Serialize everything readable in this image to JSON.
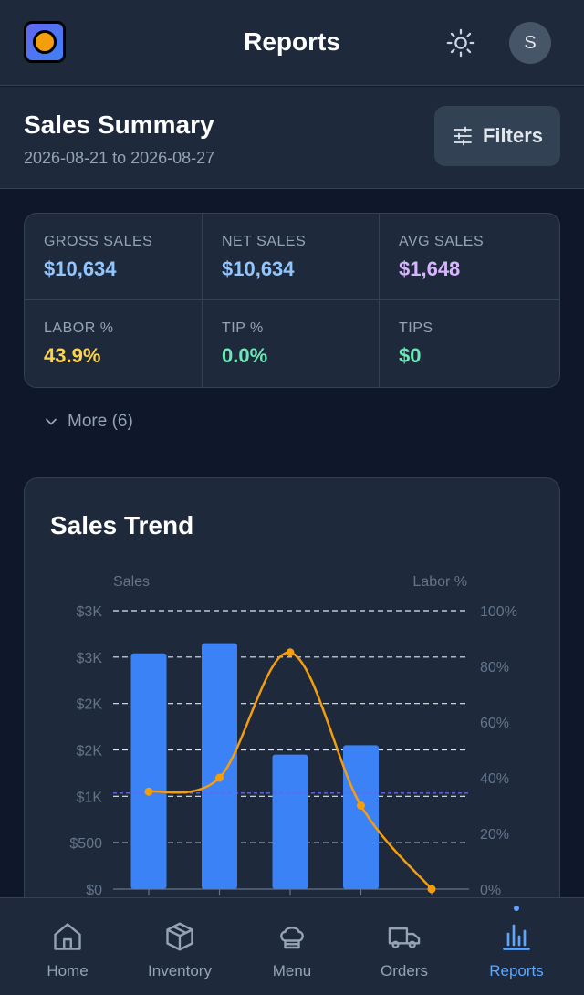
{
  "header": {
    "title": "Reports",
    "avatar_initial": "S"
  },
  "summary": {
    "title": "Sales Summary",
    "date_range": "2026-08-21 to 2026-08-27",
    "filters_label": "Filters"
  },
  "metrics": [
    {
      "label": "GROSS SALES",
      "value": "$10,634",
      "color": "#93c5fd"
    },
    {
      "label": "NET SALES",
      "value": "$10,634",
      "color": "#93c5fd"
    },
    {
      "label": "AVG SALES",
      "value": "$1,648",
      "color": "#d8b4fe"
    },
    {
      "label": "LABOR %",
      "value": "43.9%",
      "color": "#fcd34d"
    },
    {
      "label": "TIP %",
      "value": "0.0%",
      "color": "#6ee7b7"
    },
    {
      "label": "TIPS",
      "value": "$0",
      "color": "#6ee7b7"
    }
  ],
  "more_label": "More (6)",
  "chart_card": {
    "title": "Sales Trend"
  },
  "chart_data": {
    "type": "bar",
    "title": "Sales Trend",
    "ylabel": "Sales",
    "y2label": "Labor %",
    "y_ticks": [
      "$3K",
      "$3K",
      "$2K",
      "$2K",
      "$1K",
      "$500",
      "$0"
    ],
    "y2_ticks": [
      "100%",
      "80%",
      "60%",
      "40%",
      "20%",
      "0%"
    ],
    "ylim": [
      0,
      3000
    ],
    "y2lim": [
      0,
      100
    ],
    "grid": true,
    "series": [
      {
        "name": "Sales",
        "type": "bar",
        "color": "#3b82f6",
        "values": [
          2540,
          2650,
          1450,
          1550,
          0
        ]
      },
      {
        "name": "Labor %",
        "type": "line",
        "color": "#f59e0b",
        "values": [
          35,
          40,
          85,
          30,
          0
        ]
      }
    ],
    "reference_line": {
      "value": 1035,
      "color": "#6366f1"
    }
  },
  "nav": [
    {
      "label": "Home",
      "icon": "home-icon",
      "active": false
    },
    {
      "label": "Inventory",
      "icon": "box-icon",
      "active": false
    },
    {
      "label": "Menu",
      "icon": "chef-hat-icon",
      "active": false
    },
    {
      "label": "Orders",
      "icon": "truck-icon",
      "active": false
    },
    {
      "label": "Reports",
      "icon": "bar-chart-icon",
      "active": true
    }
  ],
  "colors": {
    "accent": "#60a5fa",
    "background": "#0f172a",
    "surface": "#1e293b"
  }
}
